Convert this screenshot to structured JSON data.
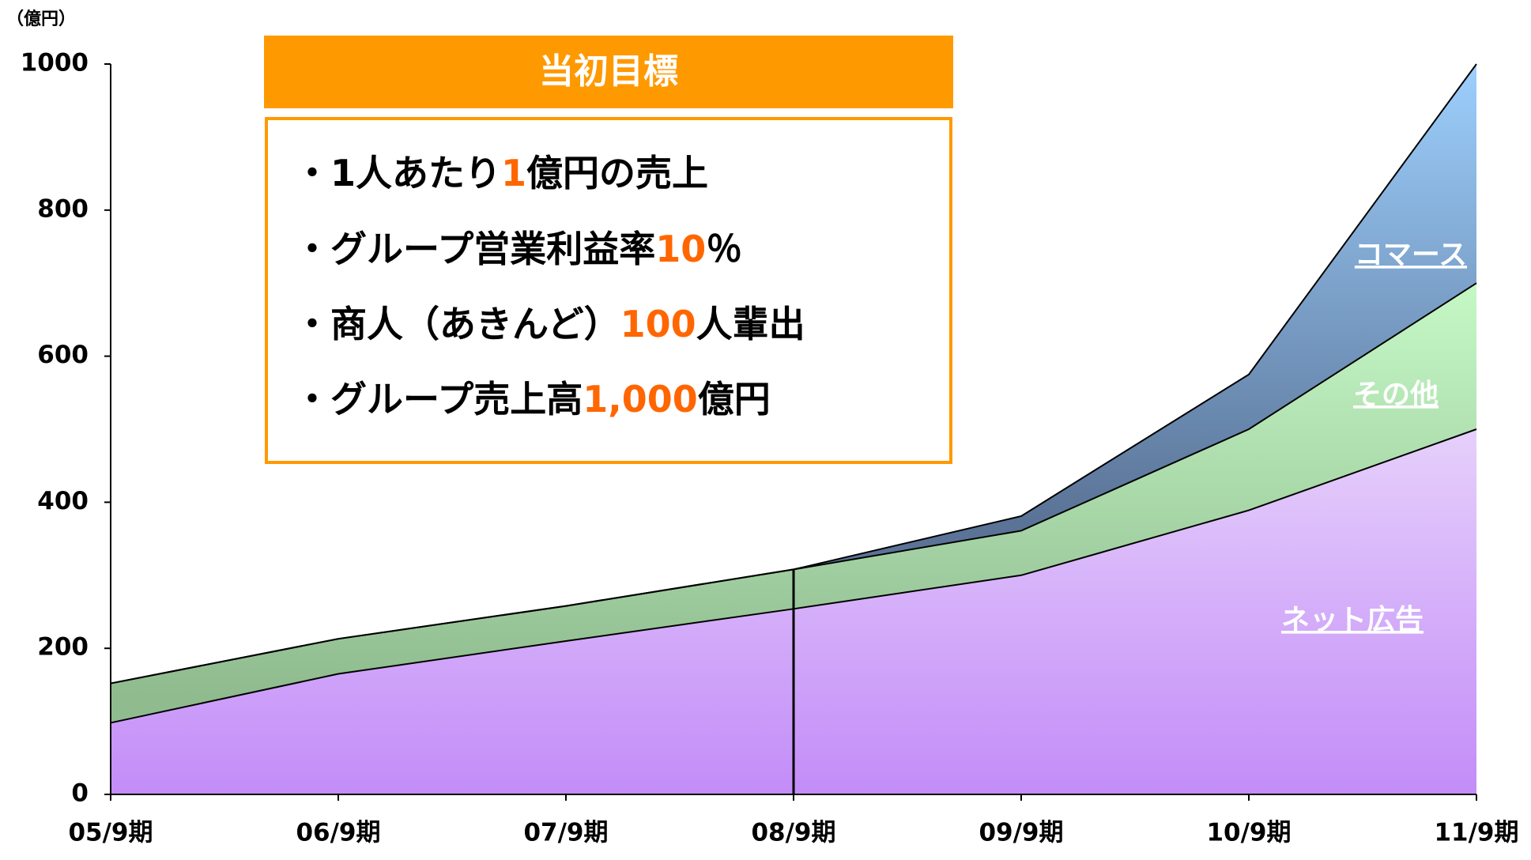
{
  "chart_data": {
    "type": "stacked_area",
    "unit_label": "（億円）",
    "categories": [
      "05/9期",
      "06/9期",
      "07/9期",
      "08/9期",
      "09/9期",
      "10/9期",
      "11/9期"
    ],
    "series": [
      {
        "name": "ネット広告",
        "color": "#c38cf8",
        "values": [
          98,
          165,
          210,
          254,
          300,
          389,
          500
        ]
      },
      {
        "name": "その他",
        "color": "#8fbb8f",
        "values": [
          54,
          48,
          48,
          54,
          61,
          111,
          200
        ]
      },
      {
        "name": "コマース",
        "color": "#5a7396",
        "values": [
          0,
          0,
          0,
          0,
          20,
          75,
          300
        ]
      }
    ],
    "ylim": [
      0,
      1000
    ],
    "yticks": [
      0,
      200,
      400,
      600,
      800,
      1000
    ],
    "goal_box": {
      "title": "当初目標",
      "items": [
        [
          "・1人あたり",
          "1",
          "億円の売上"
        ],
        [
          "・グループ営業利益率",
          "10",
          "％"
        ],
        [
          "・商人（あきんど）",
          "100",
          "人輩出"
        ],
        [
          "・グループ売上高",
          "1,000",
          "億円"
        ]
      ]
    }
  }
}
